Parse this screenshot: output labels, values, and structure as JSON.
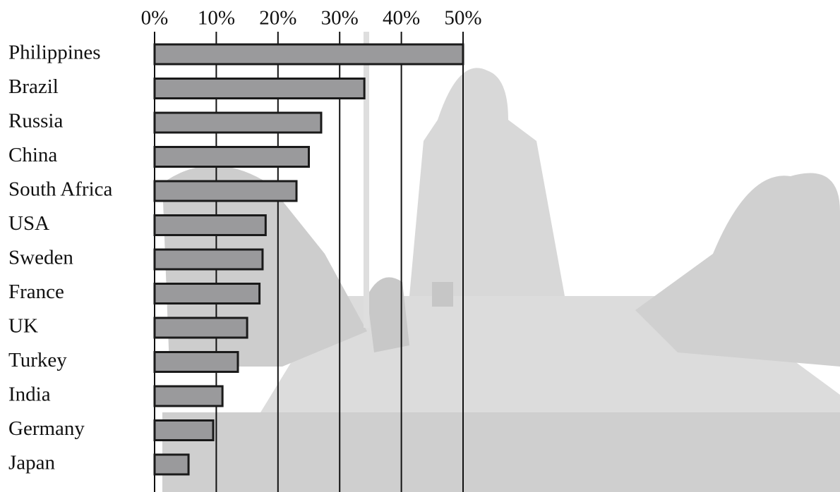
{
  "chart_data": {
    "type": "barh",
    "categories": [
      "Philippines",
      "Brazil",
      "Russia",
      "China",
      "South Africa",
      "USA",
      "Sweden",
      "France",
      "UK",
      "Turkey",
      "India",
      "Germany",
      "Japan"
    ],
    "values": [
      50,
      34,
      27,
      25,
      23,
      18,
      17.5,
      17,
      15,
      13.5,
      11,
      9.5,
      5.5
    ],
    "color": "#9a9a9c",
    "xlim": [
      0,
      50
    ],
    "xticks": [
      {
        "value": 0,
        "label": "0%"
      },
      {
        "value": 10,
        "label": "10%"
      },
      {
        "value": 20,
        "label": "20%"
      },
      {
        "value": 30,
        "label": "30%"
      },
      {
        "value": 40,
        "label": "40%"
      },
      {
        "value": 50,
        "label": "50%"
      }
    ],
    "grid": true
  }
}
